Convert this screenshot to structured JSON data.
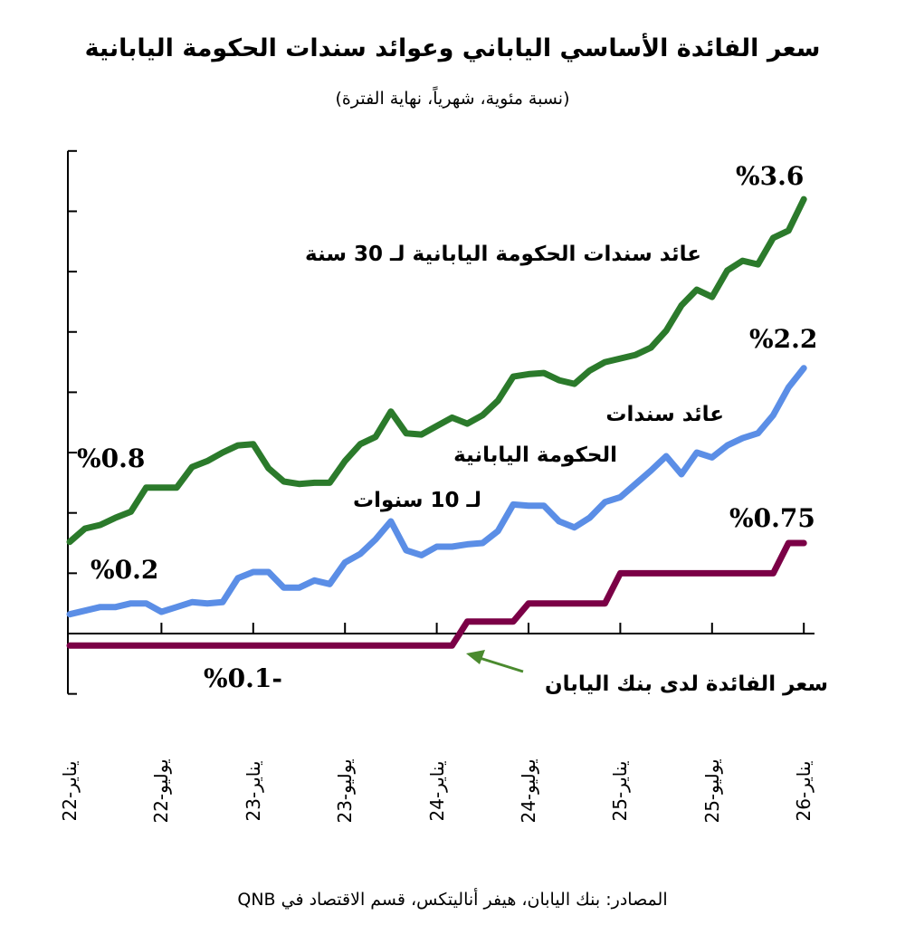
{
  "title": "سعر الفائدة الأساسي الياباني وعوائد سندات الحكومة اليابانية",
  "subtitle": "(نسبة مئوية، شهرياً، نهاية الفترة)",
  "source": "المصادر: بنك اليابان، هيفر أناليتكس، قسم الاقتصاد في QNB",
  "chart_data": {
    "type": "line",
    "title": "سعر الفائدة الأساسي الياباني وعوائد سندات الحكومة اليابانية",
    "subtitle": "(نسبة مئوية، شهرياً، نهاية الفترة)",
    "xlabel": "",
    "ylabel": "",
    "ylim": [
      -0.5,
      4.0
    ],
    "ytick_step": 0.5,
    "grid": false,
    "x_start": "2022-01",
    "x_end": "2026-01",
    "frequency": "monthly",
    "tick_labels": [
      "يناير-22",
      "يوليو-22",
      "يناير-23",
      "يوليو-23",
      "يناير-24",
      "يوليو-24",
      "يناير-25",
      "يوليو-25",
      "يناير-26"
    ],
    "series": [
      {
        "name": "عائد سندات الحكومة اليابانية لـ 30 سنة",
        "color": "#2b7a2b",
        "values": [
          0.76,
          0.87,
          0.9,
          0.96,
          1.01,
          1.21,
          1.21,
          1.21,
          1.38,
          1.43,
          1.5,
          1.56,
          1.57,
          1.37,
          1.26,
          1.24,
          1.25,
          1.25,
          1.43,
          1.57,
          1.63,
          1.84,
          1.66,
          1.65,
          1.72,
          1.79,
          1.74,
          1.81,
          1.93,
          2.13,
          2.15,
          2.16,
          2.1,
          2.07,
          2.18,
          2.25,
          2.28,
          2.31,
          2.37,
          2.51,
          2.72,
          2.85,
          2.79,
          3.01,
          3.09,
          3.06,
          3.28,
          3.34,
          3.6
        ]
      },
      {
        "name": "عائد سندات الحكومة اليابانية لـ 10 سنوات",
        "color": "#5b8ee6",
        "values": [
          0.16,
          0.19,
          0.22,
          0.22,
          0.25,
          0.25,
          0.18,
          0.22,
          0.26,
          0.25,
          0.26,
          0.46,
          0.51,
          0.51,
          0.38,
          0.38,
          0.44,
          0.41,
          0.59,
          0.66,
          0.78,
          0.93,
          0.69,
          0.65,
          0.72,
          0.72,
          0.74,
          0.75,
          0.85,
          1.07,
          1.06,
          1.06,
          0.93,
          0.88,
          0.96,
          1.09,
          1.13,
          1.24,
          1.35,
          1.47,
          1.32,
          1.5,
          1.46,
          1.56,
          1.62,
          1.66,
          1.81,
          2.04,
          2.2
        ]
      },
      {
        "name": "سعر الفائدة لدى بنك اليابان",
        "color": "#7b0046",
        "values": [
          -0.1,
          -0.1,
          -0.1,
          -0.1,
          -0.1,
          -0.1,
          -0.1,
          -0.1,
          -0.1,
          -0.1,
          -0.1,
          -0.1,
          -0.1,
          -0.1,
          -0.1,
          -0.1,
          -0.1,
          -0.1,
          -0.1,
          -0.1,
          -0.1,
          -0.1,
          -0.1,
          -0.1,
          -0.1,
          -0.1,
          0.1,
          0.1,
          0.1,
          0.1,
          0.25,
          0.25,
          0.25,
          0.25,
          0.25,
          0.25,
          0.5,
          0.5,
          0.5,
          0.5,
          0.5,
          0.5,
          0.5,
          0.5,
          0.5,
          0.5,
          0.5,
          0.75,
          0.75
        ]
      }
    ],
    "annotations": {
      "jgb30_label": "عائد سندات الحكومة اليابانية لـ 30 سنة",
      "jgb10_label_line1": "عائد سندات",
      "jgb10_label_line2": "الحكومة اليابانية",
      "jgb10_label_line3": "لـ 10 سنوات",
      "boj_label": "سعر الفائدة لدى بنك اليابان",
      "jgb30_end": "%3.6",
      "jgb10_end": "%2.2",
      "boj_end": "%0.75",
      "jgb30_start": "%0.8",
      "jgb10_start": "%0.2",
      "boj_start": "%0.1-"
    },
    "arrow_color": "#4a8a2e"
  }
}
